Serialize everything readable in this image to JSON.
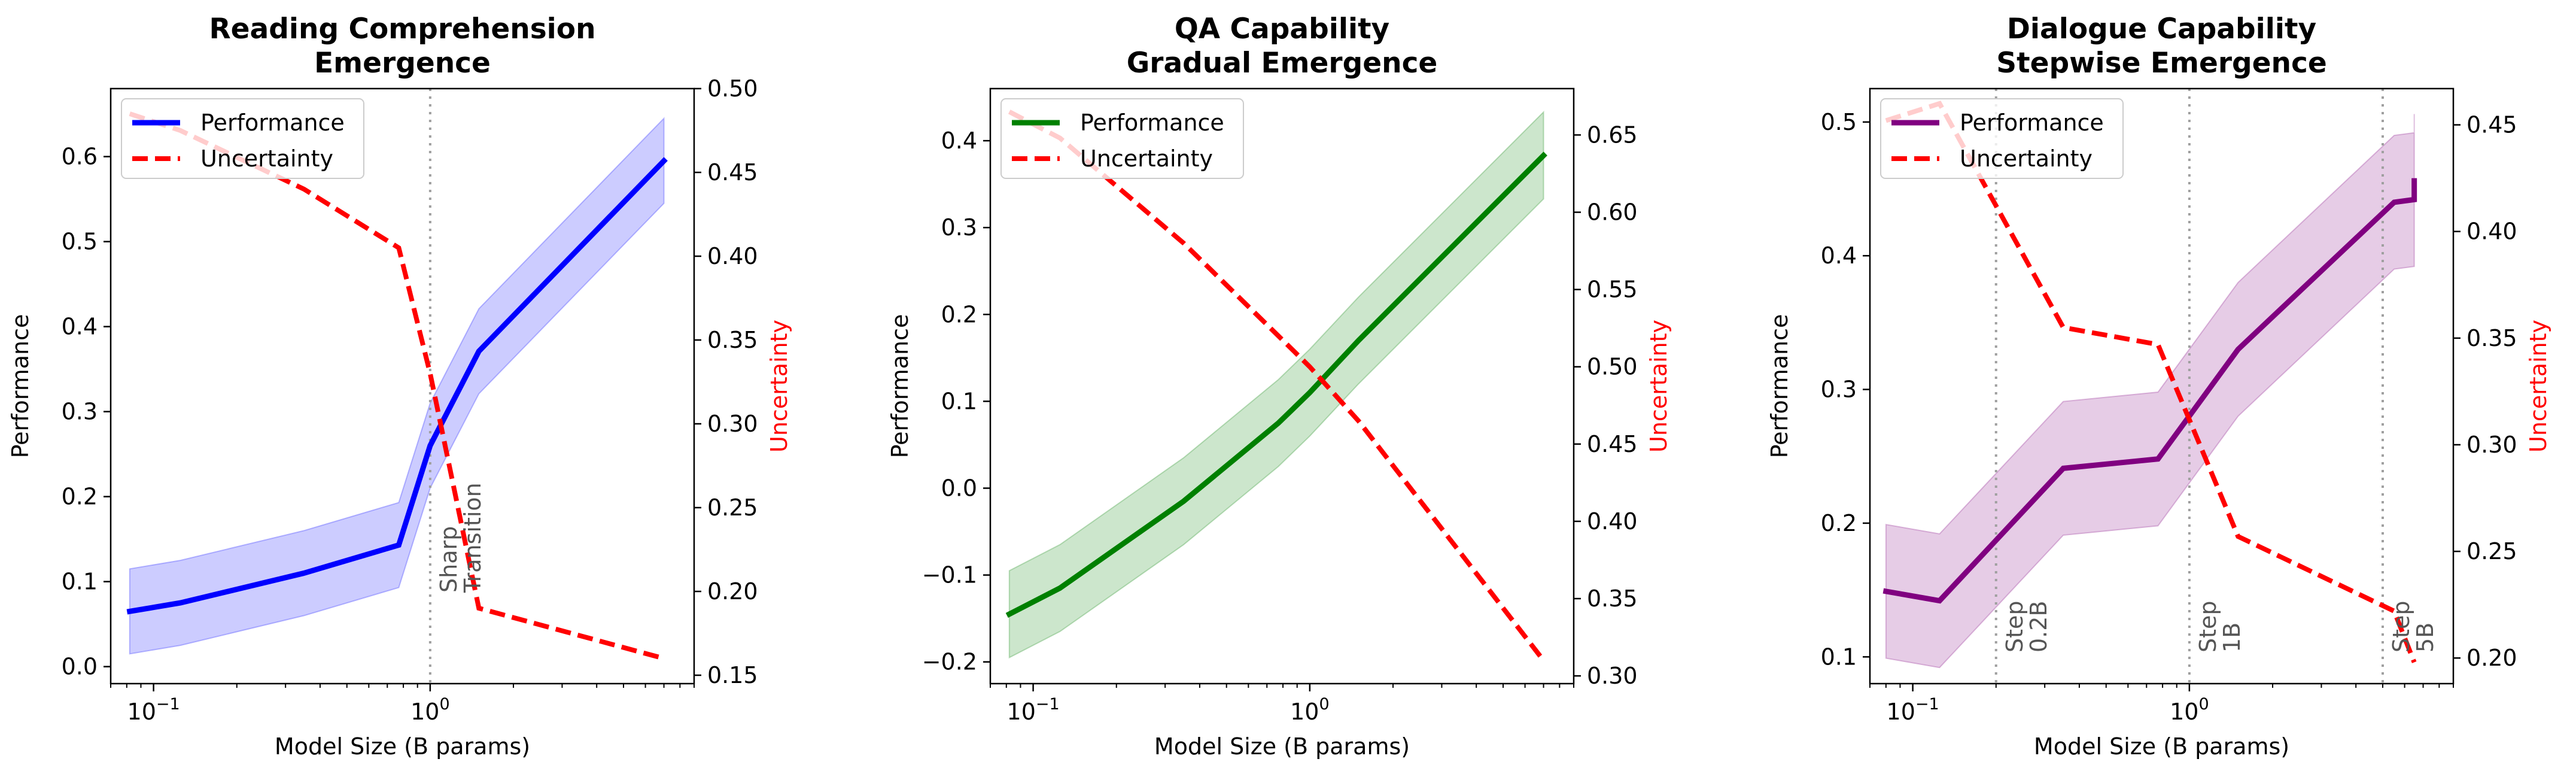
{
  "chart_data": [
    {
      "type": "line",
      "title": [
        "Reading Comprehension",
        "Emergence"
      ],
      "xlabel": "Model Size (B params)",
      "ylabel": "Performance",
      "y2label": "Uncertainty",
      "xscale": "log",
      "xlim": [
        0.07,
        9.0
      ],
      "ylim": [
        -0.02,
        0.68
      ],
      "y2lim": [
        0.145,
        0.5
      ],
      "yticks": [
        0.0,
        0.1,
        0.2,
        0.3,
        0.4,
        0.5,
        0.6
      ],
      "ytick_labels": [
        "0.0",
        "0.1",
        "0.2",
        "0.3",
        "0.4",
        "0.5",
        "0.6"
      ],
      "y2ticks": [
        0.15,
        0.2,
        0.25,
        0.3,
        0.35,
        0.4,
        0.45,
        0.5
      ],
      "y2tick_labels": [
        "0.15",
        "0.20",
        "0.25",
        "0.30",
        "0.35",
        "0.40",
        "0.45",
        "0.50"
      ],
      "xticks": [
        0.1,
        1.0
      ],
      "xtick_labels": [
        "10",
        "10"
      ],
      "xtick_exponents": [
        "−1",
        "0"
      ],
      "x": [
        0.082,
        0.125,
        0.35,
        0.77,
        1.0,
        1.5,
        7.0
      ],
      "performance": {
        "name": "Performance",
        "color": "#0000ff",
        "values": [
          0.065,
          0.075,
          0.11,
          0.143,
          0.26,
          0.371,
          0.595
        ],
        "band_low": [
          0.015,
          0.025,
          0.06,
          0.093,
          0.21,
          0.321,
          0.545
        ],
        "band_high": [
          0.115,
          0.125,
          0.16,
          0.193,
          0.31,
          0.421,
          0.645
        ],
        "band_color": "#0000ff"
      },
      "uncertainty": {
        "name": "Uncertainty",
        "color": "#ff0000",
        "values": [
          0.485,
          0.475,
          0.44,
          0.405,
          0.33,
          0.19,
          0.16
        ]
      },
      "vlines": [
        {
          "x": 1.0,
          "label": [
            "Sharp",
            "Transition"
          ]
        }
      ],
      "legend": "upper-left",
      "grid": false
    },
    {
      "type": "line",
      "title": [
        "QA Capability",
        "Gradual Emergence"
      ],
      "xlabel": "Model Size (B params)",
      "ylabel": "Performance",
      "y2label": "Uncertainty",
      "xscale": "log",
      "xlim": [
        0.07,
        9.0
      ],
      "ylim": [
        -0.225,
        0.46
      ],
      "y2lim": [
        0.295,
        0.68
      ],
      "yticks": [
        -0.2,
        -0.1,
        0.0,
        0.1,
        0.2,
        0.3,
        0.4
      ],
      "ytick_labels": [
        "−0.2",
        "−0.1",
        "0.0",
        "0.1",
        "0.2",
        "0.3",
        "0.4"
      ],
      "y2ticks": [
        0.3,
        0.35,
        0.4,
        0.45,
        0.5,
        0.55,
        0.6,
        0.65
      ],
      "y2tick_labels": [
        "0.30",
        "0.35",
        "0.40",
        "0.45",
        "0.50",
        "0.55",
        "0.60",
        "0.65"
      ],
      "xticks": [
        0.1,
        1.0
      ],
      "xtick_labels": [
        "10",
        "10"
      ],
      "xtick_exponents": [
        "−1",
        "0"
      ],
      "x": [
        0.082,
        0.125,
        0.35,
        0.77,
        1.0,
        1.5,
        7.0
      ],
      "performance": {
        "name": "Performance",
        "color": "#008000",
        "values": [
          -0.145,
          -0.115,
          -0.015,
          0.075,
          0.11,
          0.17,
          0.383
        ],
        "band_low": [
          -0.195,
          -0.165,
          -0.065,
          0.025,
          0.06,
          0.12,
          0.333
        ],
        "band_high": [
          -0.095,
          -0.065,
          0.035,
          0.125,
          0.16,
          0.22,
          0.433
        ],
        "band_color": "#008000"
      },
      "uncertainty": {
        "name": "Uncertainty",
        "color": "#ff0000",
        "values": [
          0.665,
          0.648,
          0.58,
          0.52,
          0.5,
          0.465,
          0.31
        ]
      },
      "vlines": [],
      "legend": "upper-left",
      "grid": false
    },
    {
      "type": "line",
      "title": [
        "Dialogue Capability",
        "Stepwise Emergence"
      ],
      "xlabel": "Model Size (B params)",
      "ylabel": "Performance",
      "y2label": "Uncertainty",
      "xscale": "log",
      "xlim": [
        0.07,
        9.0
      ],
      "ylim": [
        0.08,
        0.525
      ],
      "y2lim": [
        0.188,
        0.467
      ],
      "yticks": [
        0.1,
        0.2,
        0.3,
        0.4,
        0.5
      ],
      "ytick_labels": [
        "0.1",
        "0.2",
        "0.3",
        "0.4",
        "0.5"
      ],
      "y2ticks": [
        0.2,
        0.25,
        0.3,
        0.35,
        0.4,
        0.45
      ],
      "y2tick_labels": [
        "0.20",
        "0.25",
        "0.30",
        "0.35",
        "0.40",
        "0.45"
      ],
      "xticks": [
        0.1,
        1.0
      ],
      "xtick_labels": [
        "10",
        "10"
      ],
      "xtick_exponents": [
        "−1",
        "0"
      ],
      "x": [
        0.08,
        0.125,
        0.35,
        0.77,
        1.5,
        5.5,
        6.5,
        6.5
      ],
      "performance": {
        "name": "Performance",
        "color": "#800080",
        "values": [
          0.149,
          0.142,
          0.241,
          0.248,
          0.33,
          0.44,
          0.442,
          0.456
        ],
        "band_low": [
          0.099,
          0.092,
          0.191,
          0.198,
          0.28,
          0.39,
          0.392,
          0.406
        ],
        "band_high": [
          0.199,
          0.192,
          0.291,
          0.298,
          0.38,
          0.49,
          0.492,
          0.506
        ],
        "band_color": "#800080"
      },
      "uncertainty": {
        "name": "Uncertainty",
        "color": "#ff0000",
        "values": [
          0.452,
          0.46,
          0.355,
          0.347,
          0.257,
          0.222,
          0.198,
          0.198
        ]
      },
      "vlines": [
        {
          "x": 0.2,
          "label": [
            "Step",
            "0.2B"
          ]
        },
        {
          "x": 1.0,
          "label": [
            "Step",
            "1B"
          ]
        },
        {
          "x": 5.0,
          "label": [
            "Step",
            "5B"
          ]
        }
      ],
      "legend": "upper-left",
      "grid": false
    }
  ]
}
